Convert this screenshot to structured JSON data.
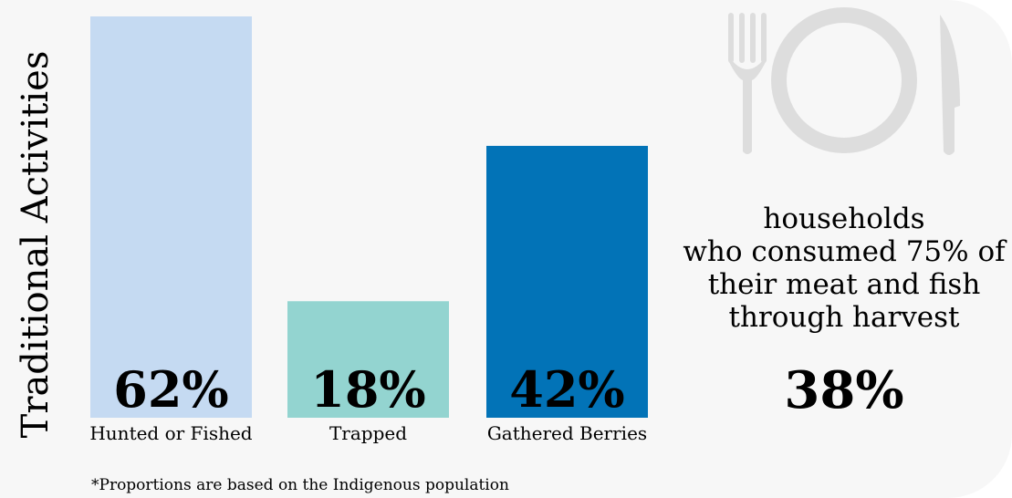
{
  "chart_data": {
    "type": "bar",
    "ylabel": "Traditional Activities",
    "categories": [
      "Hunted or Fished",
      "Trapped",
      "Gathered Berries"
    ],
    "values": [
      62,
      18,
      42
    ],
    "value_labels": [
      "62%",
      "18%",
      "42%"
    ],
    "bar_colors": [
      "#c5daf2",
      "#93d4d0",
      "#0273b7"
    ],
    "ylim": [
      0,
      62
    ],
    "grid": false,
    "legend": "none"
  },
  "side_panel": {
    "caption": "households\nwho consumed 75% of\ntheir meat and fish\nthrough harvest",
    "value": "38%",
    "icon": "plate-fork-knife-icon",
    "icon_color": "#dddddd"
  },
  "footnote": "*Proportions are based on the Indigenous population"
}
